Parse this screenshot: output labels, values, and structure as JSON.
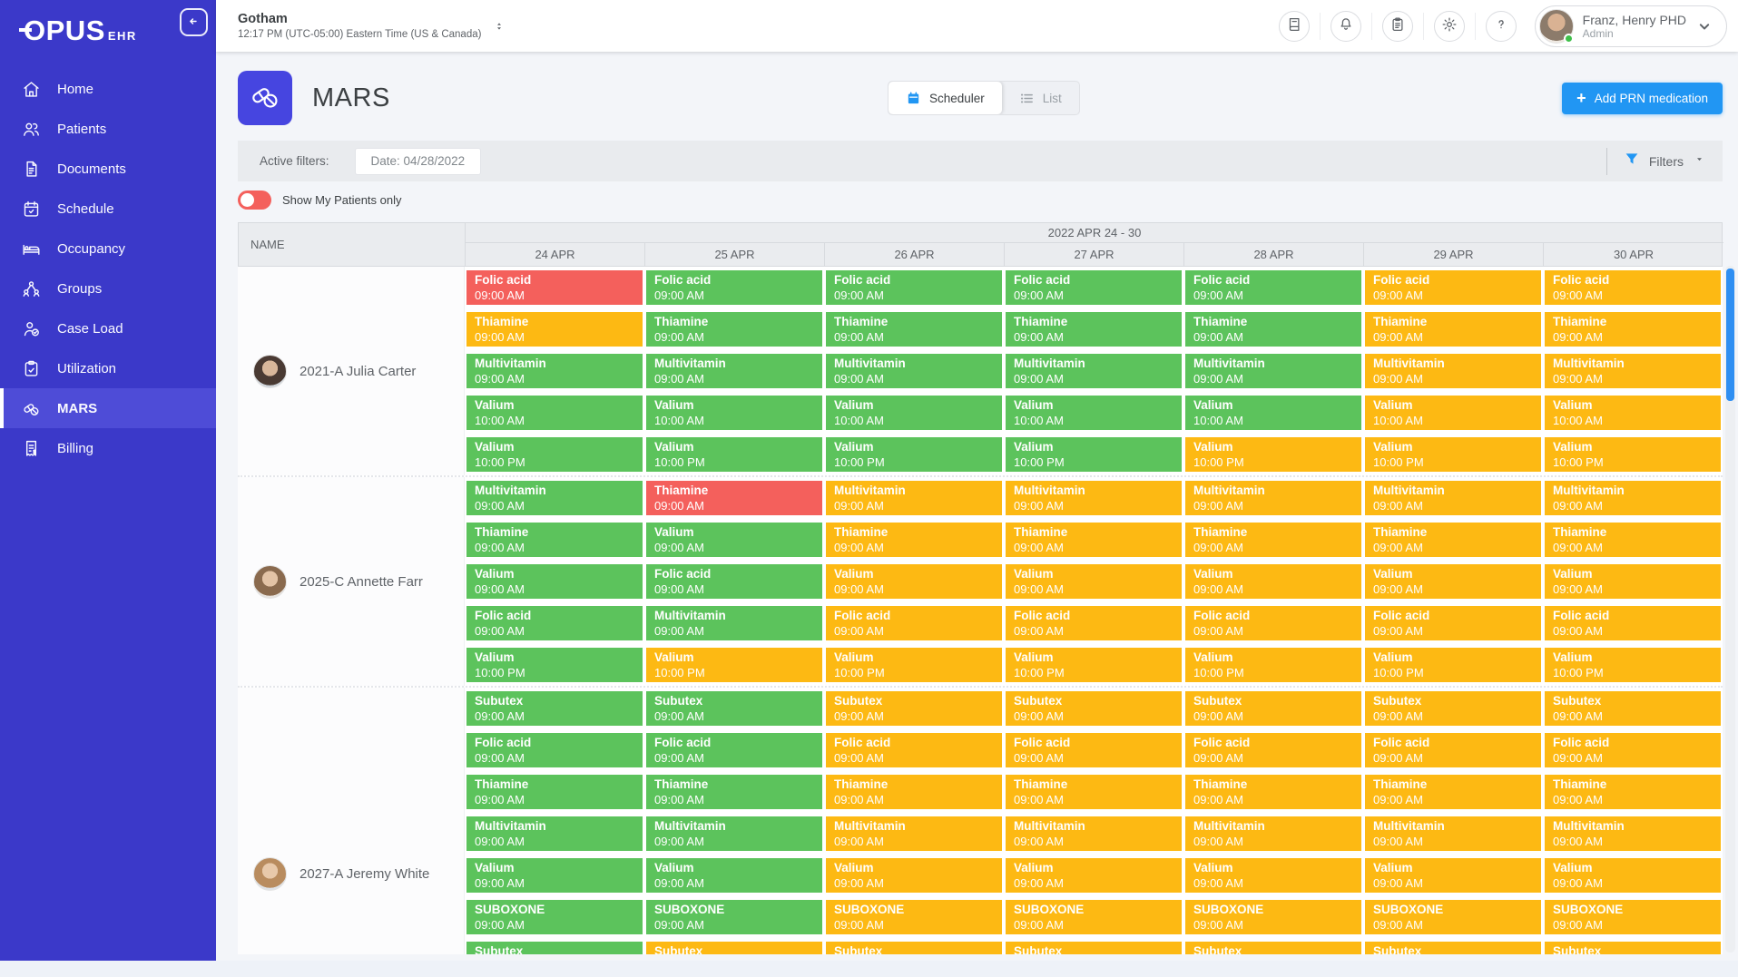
{
  "colors": {
    "sidebar": "#3b39c9",
    "sidebar-active": "#4e4cd7",
    "tile": "#4645e0",
    "accent": "#2196f3",
    "green": "#5cc35c",
    "amber": "#fdb913",
    "red": "#f4605c",
    "scrollbar": "#2f8ff2"
  },
  "sidebar": {
    "logo_main": "OPUS",
    "logo_sub": "EHR",
    "items": [
      {
        "label": "Home",
        "icon": "home-icon",
        "active": false
      },
      {
        "label": "Patients",
        "icon": "patients-icon",
        "active": false
      },
      {
        "label": "Documents",
        "icon": "documents-icon",
        "active": false
      },
      {
        "label": "Schedule",
        "icon": "schedule-icon",
        "active": false
      },
      {
        "label": "Occupancy",
        "icon": "occupancy-icon",
        "active": false
      },
      {
        "label": "Groups",
        "icon": "groups-icon",
        "active": false
      },
      {
        "label": "Case Load",
        "icon": "caseload-icon",
        "active": false
      },
      {
        "label": "Utilization",
        "icon": "utilization-icon",
        "active": false
      },
      {
        "label": "MARS",
        "icon": "mars-icon",
        "active": true
      },
      {
        "label": "Billing",
        "icon": "billing-icon",
        "active": false
      }
    ]
  },
  "header": {
    "location_name": "Gotham",
    "location_time": "12:17 PM (UTC-05:00) Eastern Time (US & Canada)",
    "icons": [
      "journal-icon",
      "bell-icon",
      "clipboard-icon",
      "settings-icon",
      "help-icon"
    ],
    "user": {
      "name": "Franz, Henry PHD",
      "role": "Admin",
      "status": "online"
    }
  },
  "page": {
    "title": "MARS",
    "views": [
      {
        "label": "Scheduler",
        "icon": "calendar-icon",
        "active": true
      },
      {
        "label": "List",
        "icon": "list-icon",
        "active": false
      }
    ],
    "add_plus": "+",
    "add_prn_label": "Add PRN medication"
  },
  "filters": {
    "active_label": "Active filters:",
    "date_chip": "Date: 04/28/2022",
    "filters_label": "Filters",
    "my_patients_label": "Show My Patients only",
    "my_patients_state": "off"
  },
  "table": {
    "name_header": "NAME",
    "week_header": "2022 APR 24 - 30",
    "days": [
      "24 APR",
      "25 APR",
      "26 APR",
      "27 APR",
      "28 APR",
      "29 APR",
      "30 APR"
    ],
    "patients": [
      {
        "label": "2021-A Julia Carter",
        "rows": [
          {
            "med": "Folic acid",
            "time": "09:00 AM",
            "statuses": [
              "red",
              "green",
              "green",
              "green",
              "green",
              "amber",
              "amber"
            ]
          },
          {
            "med": "Thiamine",
            "time": "09:00 AM",
            "statuses": [
              "amber",
              "green",
              "green",
              "green",
              "green",
              "amber",
              "amber"
            ]
          },
          {
            "med": "Multivitamin",
            "time": "09:00 AM",
            "statuses": [
              "green",
              "green",
              "green",
              "green",
              "green",
              "amber",
              "amber"
            ]
          },
          {
            "med": "Valium",
            "time": "10:00 AM",
            "statuses": [
              "green",
              "green",
              "green",
              "green",
              "green",
              "amber",
              "amber"
            ]
          },
          {
            "med": "Valium",
            "time": "10:00 PM",
            "statuses": [
              "green",
              "green",
              "green",
              "green",
              "amber",
              "amber",
              "amber"
            ]
          }
        ]
      },
      {
        "label": "2025-C Annette Farr",
        "rows": [
          {
            "cells": [
              {
                "med": "Multivitamin",
                "time": "09:00 AM",
                "status": "green"
              },
              {
                "med": "Thiamine",
                "time": "09:00 AM",
                "status": "red"
              },
              {
                "med": "Multivitamin",
                "time": "09:00 AM",
                "status": "amber"
              },
              {
                "med": "Multivitamin",
                "time": "09:00 AM",
                "status": "amber"
              },
              {
                "med": "Multivitamin",
                "time": "09:00 AM",
                "status": "amber"
              },
              {
                "med": "Multivitamin",
                "time": "09:00 AM",
                "status": "amber"
              },
              {
                "med": "Multivitamin",
                "time": "09:00 AM",
                "status": "amber"
              }
            ]
          },
          {
            "cells": [
              {
                "med": "Thiamine",
                "time": "09:00 AM",
                "status": "green"
              },
              {
                "med": "Valium",
                "time": "09:00 AM",
                "status": "green"
              },
              {
                "med": "Thiamine",
                "time": "09:00 AM",
                "status": "amber"
              },
              {
                "med": "Thiamine",
                "time": "09:00 AM",
                "status": "amber"
              },
              {
                "med": "Thiamine",
                "time": "09:00 AM",
                "status": "amber"
              },
              {
                "med": "Thiamine",
                "time": "09:00 AM",
                "status": "amber"
              },
              {
                "med": "Thiamine",
                "time": "09:00 AM",
                "status": "amber"
              }
            ]
          },
          {
            "cells": [
              {
                "med": "Valium",
                "time": "09:00 AM",
                "status": "green"
              },
              {
                "med": "Folic acid",
                "time": "09:00 AM",
                "status": "green"
              },
              {
                "med": "Valium",
                "time": "09:00 AM",
                "status": "amber"
              },
              {
                "med": "Valium",
                "time": "09:00 AM",
                "status": "amber"
              },
              {
                "med": "Valium",
                "time": "09:00 AM",
                "status": "amber"
              },
              {
                "med": "Valium",
                "time": "09:00 AM",
                "status": "amber"
              },
              {
                "med": "Valium",
                "time": "09:00 AM",
                "status": "amber"
              }
            ]
          },
          {
            "cells": [
              {
                "med": "Folic acid",
                "time": "09:00 AM",
                "status": "green"
              },
              {
                "med": "Multivitamin",
                "time": "09:00 AM",
                "status": "green"
              },
              {
                "med": "Folic acid",
                "time": "09:00 AM",
                "status": "amber"
              },
              {
                "med": "Folic acid",
                "time": "09:00 AM",
                "status": "amber"
              },
              {
                "med": "Folic acid",
                "time": "09:00 AM",
                "status": "amber"
              },
              {
                "med": "Folic acid",
                "time": "09:00 AM",
                "status": "amber"
              },
              {
                "med": "Folic acid",
                "time": "09:00 AM",
                "status": "amber"
              }
            ]
          },
          {
            "med": "Valium",
            "time": "10:00 PM",
            "statuses": [
              "green",
              "amber",
              "amber",
              "amber",
              "amber",
              "amber",
              "amber"
            ]
          }
        ]
      },
      {
        "label": "2027-A Jeremy White",
        "rows": [
          {
            "med": "Subutex",
            "time": "09:00 AM",
            "statuses": [
              "green",
              "green",
              "amber",
              "amber",
              "amber",
              "amber",
              "amber"
            ]
          },
          {
            "med": "Folic acid",
            "time": "09:00 AM",
            "statuses": [
              "green",
              "green",
              "amber",
              "amber",
              "amber",
              "amber",
              "amber"
            ]
          },
          {
            "med": "Thiamine",
            "time": "09:00 AM",
            "statuses": [
              "green",
              "green",
              "amber",
              "amber",
              "amber",
              "amber",
              "amber"
            ]
          },
          {
            "med": "Multivitamin",
            "time": "09:00 AM",
            "statuses": [
              "green",
              "green",
              "amber",
              "amber",
              "amber",
              "amber",
              "amber"
            ]
          },
          {
            "med": "Valium",
            "time": "09:00 AM",
            "statuses": [
              "green",
              "green",
              "amber",
              "amber",
              "amber",
              "amber",
              "amber"
            ]
          },
          {
            "med": "SUBOXONE",
            "time": "09:00 AM",
            "statuses": [
              "green",
              "green",
              "amber",
              "amber",
              "amber",
              "amber",
              "amber"
            ]
          },
          {
            "med": "Subutex",
            "time": "",
            "statuses": [
              "green",
              "amber",
              "amber",
              "amber",
              "amber",
              "amber",
              "amber"
            ]
          }
        ]
      }
    ]
  }
}
